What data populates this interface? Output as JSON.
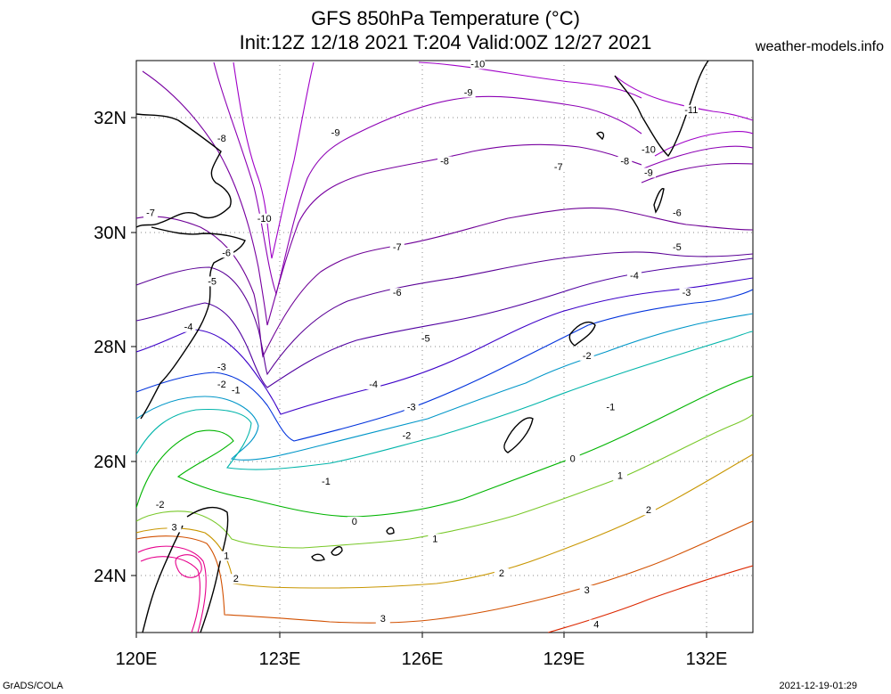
{
  "title": {
    "line1": "GFS 850hPa Temperature (°C)",
    "line2": "Init:12Z 12/18 2021 T:204 Valid:00Z 12/27 2021"
  },
  "site": "weather-models.info",
  "footer": {
    "left": "GrADS/COLA",
    "right": "2021-12-19-01:29"
  },
  "axes": {
    "lon_ticks": [
      "120E",
      "123E",
      "126E",
      "129E",
      "132E"
    ],
    "lat_ticks": [
      "32N",
      "30N",
      "28N",
      "26N",
      "24N"
    ],
    "lon_range": [
      120,
      133
    ],
    "lat_range": [
      23,
      33
    ]
  },
  "contour_labels": [
    {
      "v": "-10",
      "lon": 127.2,
      "lat": 32.9
    },
    {
      "v": "-9",
      "lon": 127.0,
      "lat": 32.4
    },
    {
      "v": "-9",
      "lon": 124.2,
      "lat": 31.7
    },
    {
      "v": "-8",
      "lon": 126.5,
      "lat": 31.2
    },
    {
      "v": "-7",
      "lon": 128.9,
      "lat": 31.1
    },
    {
      "v": "-11",
      "lon": 131.7,
      "lat": 32.1
    },
    {
      "v": "-10",
      "lon": 130.8,
      "lat": 31.4
    },
    {
      "v": "-9",
      "lon": 130.8,
      "lat": 31.0
    },
    {
      "v": "-8",
      "lon": 130.3,
      "lat": 31.2
    },
    {
      "v": "-6",
      "lon": 131.4,
      "lat": 30.3
    },
    {
      "v": "-5",
      "lon": 131.4,
      "lat": 29.7
    },
    {
      "v": "-4",
      "lon": 130.5,
      "lat": 29.2
    },
    {
      "v": "-3",
      "lon": 131.6,
      "lat": 28.9
    },
    {
      "v": "-10",
      "lon": 122.7,
      "lat": 30.2
    },
    {
      "v": "-8",
      "lon": 121.8,
      "lat": 31.6
    },
    {
      "v": "-7",
      "lon": 120.3,
      "lat": 30.3
    },
    {
      "v": "-7",
      "lon": 125.5,
      "lat": 29.7
    },
    {
      "v": "-6",
      "lon": 121.9,
      "lat": 29.6
    },
    {
      "v": "-6",
      "lon": 125.5,
      "lat": 28.9
    },
    {
      "v": "-5",
      "lon": 121.6,
      "lat": 29.1
    },
    {
      "v": "-5",
      "lon": 126.1,
      "lat": 28.1
    },
    {
      "v": "-4",
      "lon": 121.1,
      "lat": 28.3
    },
    {
      "v": "-4",
      "lon": 125.0,
      "lat": 27.3
    },
    {
      "v": "-3",
      "lon": 121.8,
      "lat": 27.6
    },
    {
      "v": "-3",
      "lon": 125.8,
      "lat": 26.9
    },
    {
      "v": "-2",
      "lon": 121.8,
      "lat": 27.3
    },
    {
      "v": "-1",
      "lon": 122.1,
      "lat": 27.2
    },
    {
      "v": "-2",
      "lon": 125.7,
      "lat": 26.4
    },
    {
      "v": "-2",
      "lon": 129.5,
      "lat": 27.8
    },
    {
      "v": "-1",
      "lon": 130.0,
      "lat": 26.9
    },
    {
      "v": "-2",
      "lon": 120.5,
      "lat": 25.2
    },
    {
      "v": "-1",
      "lon": 124.0,
      "lat": 25.6
    },
    {
      "v": "0",
      "lon": 124.6,
      "lat": 24.9
    },
    {
      "v": "0",
      "lon": 129.2,
      "lat": 26.0
    },
    {
      "v": "1",
      "lon": 126.3,
      "lat": 24.6
    },
    {
      "v": "1",
      "lon": 130.2,
      "lat": 25.7
    },
    {
      "v": "1",
      "lon": 121.9,
      "lat": 24.3
    },
    {
      "v": "2",
      "lon": 127.7,
      "lat": 24.0
    },
    {
      "v": "2",
      "lon": 130.8,
      "lat": 25.1
    },
    {
      "v": "2",
      "lon": 122.1,
      "lat": 23.9
    },
    {
      "v": "3",
      "lon": 120.8,
      "lat": 24.8
    },
    {
      "v": "3",
      "lon": 129.5,
      "lat": 23.7
    },
    {
      "v": "3",
      "lon": 125.2,
      "lat": 23.2
    },
    {
      "v": "4",
      "lon": 129.7,
      "lat": 23.1
    }
  ],
  "colors": {
    "c_m11": "#a000c8",
    "c_m10": "#a000c8",
    "c_m9": "#8c00b4",
    "c_m8": "#7800a0",
    "c_m7": "#6e0096",
    "c_m6": "#5a0096",
    "c_m5": "#5000a0",
    "c_m4": "#3c00c8",
    "c_m3": "#0032dc",
    "c_m2": "#0096c8",
    "c_m1": "#00b4aa",
    "c_0": "#00b400",
    "c_1": "#78c828",
    "c_2": "#c89600",
    "c_3": "#d25000",
    "c_4": "#dc2800",
    "c_hot": "#e6008c",
    "coast": "#000000"
  }
}
